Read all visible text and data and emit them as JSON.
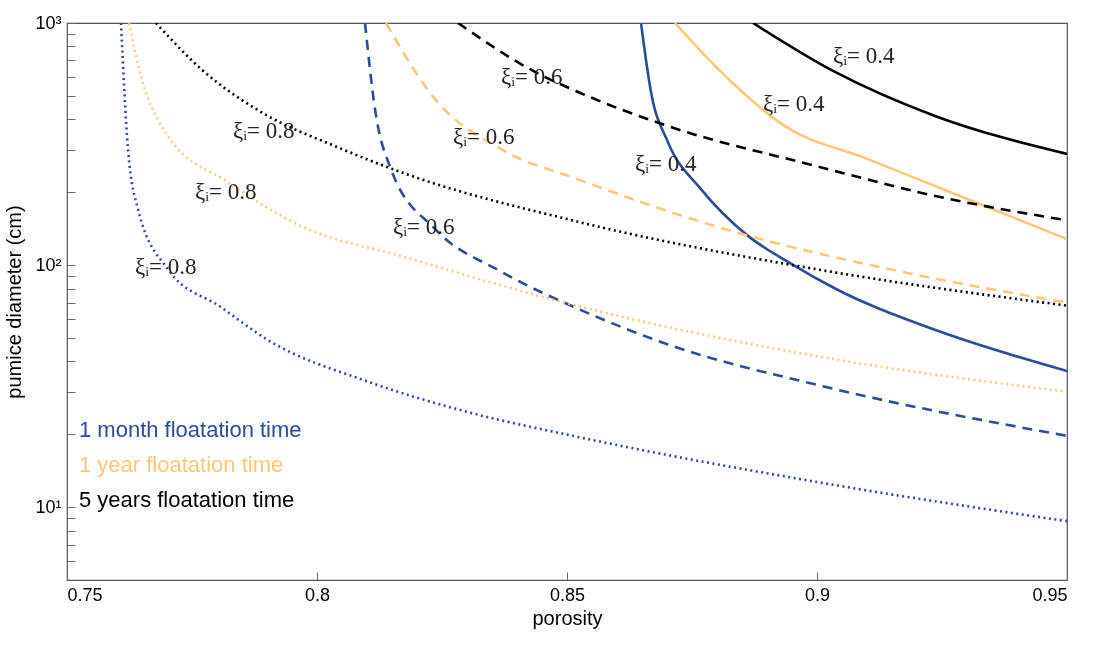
{
  "chart_data": {
    "type": "line",
    "xlabel": "porosity",
    "ylabel": "pumice diameter (cm)",
    "log": "y",
    "legend": "bottom left",
    "grid": false,
    "xlim": [
      0.75,
      0.95
    ],
    "xticks": [
      0.75,
      0.8,
      0.85,
      0.9,
      0.95
    ],
    "ylim": [
      5,
      1000
    ],
    "yticks": [
      {
        "value": 6,
        "label": null
      },
      {
        "value": 7,
        "label": null
      },
      {
        "value": 8,
        "label": null
      },
      {
        "value": 9,
        "label": null
      },
      {
        "value": 10,
        "label": "10¹"
      },
      {
        "value": 20,
        "label": null
      },
      {
        "value": 30,
        "label": null
      },
      {
        "value": 40,
        "label": null
      },
      {
        "value": 50,
        "label": null
      },
      {
        "value": 60,
        "label": null
      },
      {
        "value": 70,
        "label": null
      },
      {
        "value": 80,
        "label": null
      },
      {
        "value": 90,
        "label": null
      },
      {
        "value": 100,
        "label": "10²"
      },
      {
        "value": 200,
        "label": null
      },
      {
        "value": 300,
        "label": null
      },
      {
        "value": 400,
        "label": null
      },
      {
        "value": 500,
        "label": null
      },
      {
        "value": 600,
        "label": null
      },
      {
        "value": 700,
        "label": null
      },
      {
        "value": 800,
        "label": null
      },
      {
        "value": 900,
        "label": null
      },
      {
        "value": 1000,
        "label": "10³"
      }
    ],
    "series": [
      {
        "name": "1 month floatation time",
        "color": "#2b4ba0",
        "line_style": "solid",
        "x": [
          0.8648,
          0.8668,
          0.8702,
          0.8768,
          0.8862,
          0.8942,
          0.9036,
          0.9236,
          0.95
        ],
        "values": [
          1000,
          519,
          322,
          206,
          132,
          103,
          80,
          54,
          36.5
        ]
      },
      {
        "name": "1 year floatation time",
        "color": "#fdc876",
        "line_style": "solid",
        "x": [
          0.8716,
          0.8802,
          0.8936,
          0.9102,
          0.9236,
          0.95
        ],
        "values": [
          1000,
          646,
          375,
          274,
          212,
          128
        ]
      },
      {
        "name": "5 years floatation time",
        "color": "#000000",
        "line_style": "solid",
        "x": [
          0.8872,
          0.9036,
          0.9236,
          0.95
        ],
        "values": [
          1000,
          628,
          413,
          288
        ]
      },
      {
        "color": "#2b4ba0",
        "line_style": "dashed",
        "x": [
          0.8096,
          0.8116,
          0.8148,
          0.8236,
          0.8368,
          0.8522,
          0.8702,
          0.9,
          0.95
        ],
        "values": [
          1000,
          441,
          249,
          141,
          94,
          66,
          47,
          32,
          19.7
        ]
      },
      {
        "color": "#fdc876",
        "line_style": "dashed",
        "x": [
          0.8138,
          0.8236,
          0.8368,
          0.8522,
          0.8836,
          0.9168,
          0.95
        ],
        "values": [
          1000,
          485,
          301,
          226,
          137,
          94,
          70
        ]
      },
      {
        "color": "#000000",
        "line_style": "dashed",
        "x": [
          0.8282,
          0.8436,
          0.8522,
          0.8702,
          0.9,
          0.9236,
          0.95
        ],
        "values": [
          1000,
          628,
          519,
          375,
          256,
          193,
          153
        ]
      },
      {
        "color": "#2b4ba0",
        "line_style": "dotted",
        "x": [
          0.7608,
          0.7622,
          0.7642,
          0.7702,
          0.7808,
          0.7902,
          0.8102,
          0.8302,
          0.8522,
          0.9,
          0.95
        ],
        "values": [
          1000,
          301,
          170,
          96,
          67,
          49,
          33,
          24.7,
          19.5,
          12.7,
          8.75
        ]
      },
      {
        "color": "#fdc876",
        "line_style": "dotted",
        "x": [
          0.7624,
          0.7648,
          0.7702,
          0.7822,
          0.7968,
          0.8168,
          0.8522,
          0.9,
          0.95
        ],
        "values": [
          1000,
          604,
          341,
          220,
          145,
          109,
          67.7,
          42,
          30
        ]
      },
      {
        "color": "#000000",
        "line_style": "dotted",
        "x": [
          0.7678,
          0.7768,
          0.7902,
          0.8036,
          0.8168,
          0.8522,
          0.9,
          0.95
        ],
        "values": [
          1000,
          646,
          413,
          310,
          242,
          151,
          96,
          68
        ]
      }
    ],
    "annotations": [
      "ξᵢ= 0.6",
      "ξᵢ= 0.4",
      "ξᵢ= 0.4",
      "ξᵢ= 0.8",
      "ξᵢ= 0.6",
      "ξᵢ= 0.4",
      "ξᵢ= 0.8",
      "ξᵢ= 0.6",
      "ξᵢ= 0.8"
    ]
  }
}
